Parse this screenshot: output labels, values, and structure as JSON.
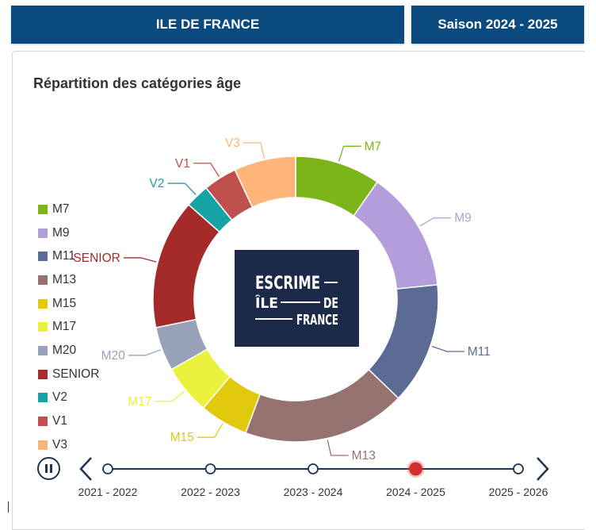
{
  "header": {
    "region": "ILE DE FRANCE",
    "season": "Saison 2024 - 2025"
  },
  "logo": {
    "line1": "ESCRIME",
    "line2a": "ÎLE",
    "line2b": "DE",
    "line3": "FRANCE"
  },
  "timeline": {
    "labels": [
      "2021 - 2022",
      "2022 - 2023",
      "2023 - 2024",
      "2024 - 2025",
      "2025 - 2026"
    ],
    "selected_index": 3
  },
  "chart_data": {
    "type": "pie",
    "title": "Répartition des catégories âge",
    "donut": true,
    "legend_position": "left",
    "categories": [
      "M7",
      "M9",
      "M11",
      "M13",
      "M15",
      "M17",
      "M20",
      "SENIOR",
      "V2",
      "V1",
      "V3"
    ],
    "colors": [
      "#7cb518",
      "#b39ddb",
      "#5b6b94",
      "#967371",
      "#e1c90e",
      "#eaf23b",
      "#97a2b8",
      "#a52a2a",
      "#17a3a3",
      "#c0504d",
      "#ffb57a"
    ],
    "values": [
      9.7,
      13.7,
      13.8,
      18.5,
      5.5,
      5.6,
      5.0,
      14.7,
      2.7,
      3.8,
      7.0
    ],
    "unit": "%"
  }
}
